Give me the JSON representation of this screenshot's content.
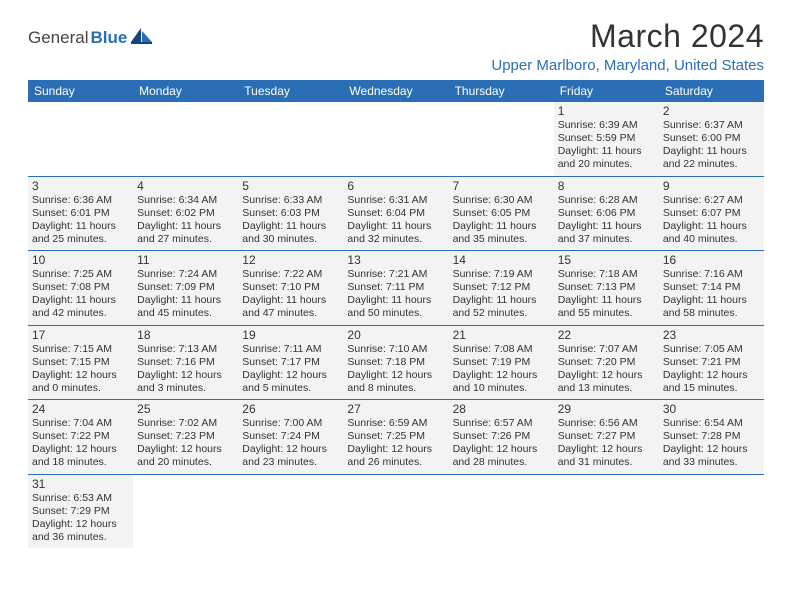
{
  "logo": {
    "text1": "General",
    "text2": "Blue"
  },
  "title": "March 2024",
  "location": "Upper Marlboro, Maryland, United States",
  "colors": {
    "brand": "#2a6fb5",
    "cell_bg": "#f3f3f3",
    "page_bg": "#ffffff",
    "text": "#333333"
  },
  "weekdays": [
    "Sunday",
    "Monday",
    "Tuesday",
    "Wednesday",
    "Thursday",
    "Friday",
    "Saturday"
  ],
  "weeks": [
    [
      null,
      null,
      null,
      null,
      null,
      {
        "n": "1",
        "sr": "6:39 AM",
        "ss": "5:59 PM",
        "dl": "11 hours and 20 minutes."
      },
      {
        "n": "2",
        "sr": "6:37 AM",
        "ss": "6:00 PM",
        "dl": "11 hours and 22 minutes."
      }
    ],
    [
      {
        "n": "3",
        "sr": "6:36 AM",
        "ss": "6:01 PM",
        "dl": "11 hours and 25 minutes."
      },
      {
        "n": "4",
        "sr": "6:34 AM",
        "ss": "6:02 PM",
        "dl": "11 hours and 27 minutes."
      },
      {
        "n": "5",
        "sr": "6:33 AM",
        "ss": "6:03 PM",
        "dl": "11 hours and 30 minutes."
      },
      {
        "n": "6",
        "sr": "6:31 AM",
        "ss": "6:04 PM",
        "dl": "11 hours and 32 minutes."
      },
      {
        "n": "7",
        "sr": "6:30 AM",
        "ss": "6:05 PM",
        "dl": "11 hours and 35 minutes."
      },
      {
        "n": "8",
        "sr": "6:28 AM",
        "ss": "6:06 PM",
        "dl": "11 hours and 37 minutes."
      },
      {
        "n": "9",
        "sr": "6:27 AM",
        "ss": "6:07 PM",
        "dl": "11 hours and 40 minutes."
      }
    ],
    [
      {
        "n": "10",
        "sr": "7:25 AM",
        "ss": "7:08 PM",
        "dl": "11 hours and 42 minutes."
      },
      {
        "n": "11",
        "sr": "7:24 AM",
        "ss": "7:09 PM",
        "dl": "11 hours and 45 minutes."
      },
      {
        "n": "12",
        "sr": "7:22 AM",
        "ss": "7:10 PM",
        "dl": "11 hours and 47 minutes."
      },
      {
        "n": "13",
        "sr": "7:21 AM",
        "ss": "7:11 PM",
        "dl": "11 hours and 50 minutes."
      },
      {
        "n": "14",
        "sr": "7:19 AM",
        "ss": "7:12 PM",
        "dl": "11 hours and 52 minutes."
      },
      {
        "n": "15",
        "sr": "7:18 AM",
        "ss": "7:13 PM",
        "dl": "11 hours and 55 minutes."
      },
      {
        "n": "16",
        "sr": "7:16 AM",
        "ss": "7:14 PM",
        "dl": "11 hours and 58 minutes."
      }
    ],
    [
      {
        "n": "17",
        "sr": "7:15 AM",
        "ss": "7:15 PM",
        "dl": "12 hours and 0 minutes."
      },
      {
        "n": "18",
        "sr": "7:13 AM",
        "ss": "7:16 PM",
        "dl": "12 hours and 3 minutes."
      },
      {
        "n": "19",
        "sr": "7:11 AM",
        "ss": "7:17 PM",
        "dl": "12 hours and 5 minutes."
      },
      {
        "n": "20",
        "sr": "7:10 AM",
        "ss": "7:18 PM",
        "dl": "12 hours and 8 minutes."
      },
      {
        "n": "21",
        "sr": "7:08 AM",
        "ss": "7:19 PM",
        "dl": "12 hours and 10 minutes."
      },
      {
        "n": "22",
        "sr": "7:07 AM",
        "ss": "7:20 PM",
        "dl": "12 hours and 13 minutes."
      },
      {
        "n": "23",
        "sr": "7:05 AM",
        "ss": "7:21 PM",
        "dl": "12 hours and 15 minutes."
      }
    ],
    [
      {
        "n": "24",
        "sr": "7:04 AM",
        "ss": "7:22 PM",
        "dl": "12 hours and 18 minutes."
      },
      {
        "n": "25",
        "sr": "7:02 AM",
        "ss": "7:23 PM",
        "dl": "12 hours and 20 minutes."
      },
      {
        "n": "26",
        "sr": "7:00 AM",
        "ss": "7:24 PM",
        "dl": "12 hours and 23 minutes."
      },
      {
        "n": "27",
        "sr": "6:59 AM",
        "ss": "7:25 PM",
        "dl": "12 hours and 26 minutes."
      },
      {
        "n": "28",
        "sr": "6:57 AM",
        "ss": "7:26 PM",
        "dl": "12 hours and 28 minutes."
      },
      {
        "n": "29",
        "sr": "6:56 AM",
        "ss": "7:27 PM",
        "dl": "12 hours and 31 minutes."
      },
      {
        "n": "30",
        "sr": "6:54 AM",
        "ss": "7:28 PM",
        "dl": "12 hours and 33 minutes."
      }
    ],
    [
      {
        "n": "31",
        "sr": "6:53 AM",
        "ss": "7:29 PM",
        "dl": "12 hours and 36 minutes."
      },
      null,
      null,
      null,
      null,
      null,
      null
    ]
  ],
  "labels": {
    "sunrise": "Sunrise:",
    "sunset": "Sunset:",
    "daylight": "Daylight:"
  }
}
